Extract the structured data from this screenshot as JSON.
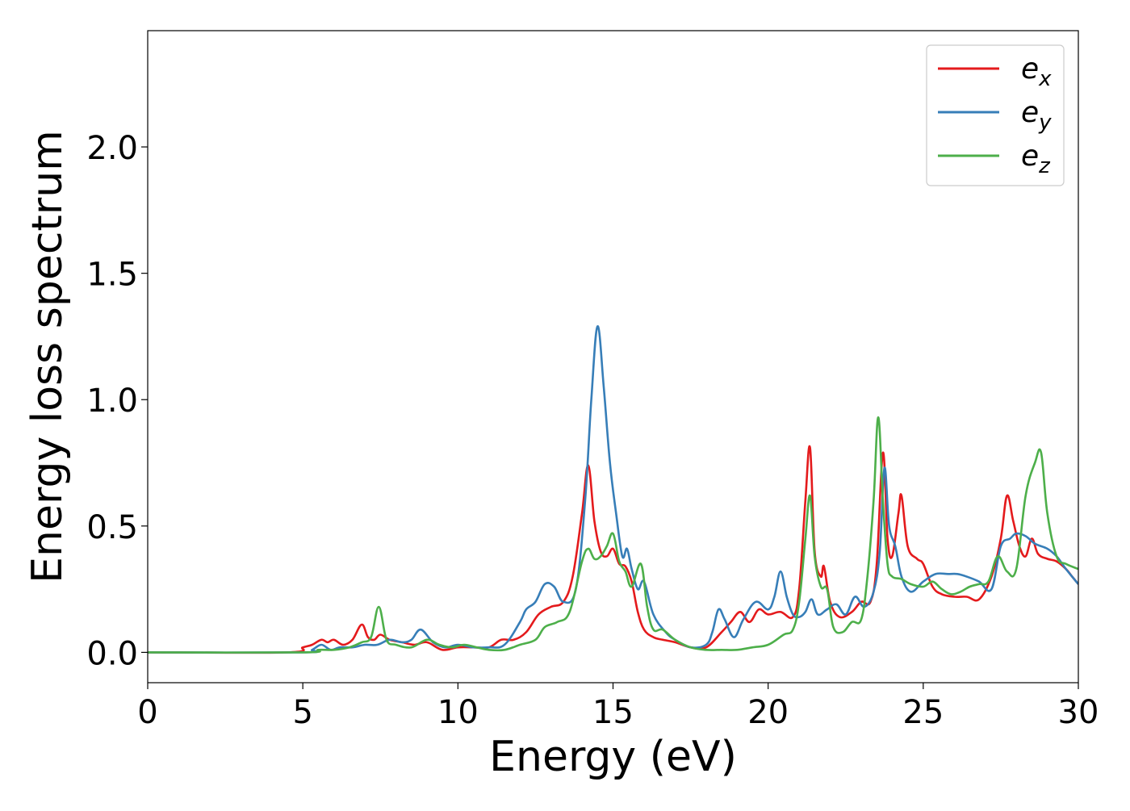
{
  "chart_data": {
    "type": "line",
    "title": "",
    "xlabel": "Energy (eV)",
    "ylabel": "Energy loss spectrum",
    "xlim": [
      0,
      30
    ],
    "ylim": [
      -0.12,
      2.46
    ],
    "xticks": [
      0,
      5,
      10,
      15,
      20,
      25,
      30
    ],
    "xtick_labels": [
      "0",
      "5",
      "10",
      "15",
      "20",
      "25",
      "30"
    ],
    "yticks": [
      0.0,
      0.5,
      1.0,
      1.5,
      2.0
    ],
    "ytick_labels": [
      "0.0",
      "0.5",
      "1.0",
      "1.5",
      "2.0"
    ],
    "grid": false,
    "legend_position": "top-right",
    "series": [
      {
        "name": "e_x",
        "legend_base": "e",
        "legend_sub": "x",
        "color": "#e41a1c",
        "x": [
          0,
          4.5,
          5.0,
          5.3,
          5.6,
          5.8,
          6.0,
          6.3,
          6.6,
          6.9,
          7.1,
          7.3,
          7.5,
          7.8,
          8.2,
          8.6,
          9.0,
          9.5,
          10.0,
          10.5,
          11.0,
          11.4,
          11.8,
          12.2,
          12.6,
          13.0,
          13.4,
          13.7,
          14.0,
          14.2,
          14.4,
          14.6,
          14.8,
          15.0,
          15.2,
          15.4,
          15.6,
          15.8,
          16.0,
          16.3,
          16.6,
          17.0,
          17.5,
          18.0,
          18.5,
          18.8,
          19.1,
          19.4,
          19.7,
          20.0,
          20.4,
          20.8,
          21.0,
          21.2,
          21.35,
          21.5,
          21.7,
          21.8,
          22.0,
          22.3,
          22.7,
          23.0,
          23.3,
          23.5,
          23.7,
          23.85,
          24.0,
          24.2,
          24.3,
          24.5,
          24.8,
          25.0,
          25.3,
          25.6,
          26.0,
          26.4,
          26.8,
          27.2,
          27.5,
          27.7,
          27.9,
          28.1,
          28.3,
          28.5,
          28.7,
          29.0,
          29.3,
          29.6,
          29.8,
          30.0
        ],
        "y": [
          0.0,
          0.0,
          0.02,
          0.03,
          0.05,
          0.04,
          0.05,
          0.03,
          0.05,
          0.11,
          0.06,
          0.05,
          0.07,
          0.05,
          0.04,
          0.03,
          0.04,
          0.01,
          0.02,
          0.02,
          0.02,
          0.05,
          0.05,
          0.08,
          0.15,
          0.18,
          0.2,
          0.3,
          0.55,
          0.74,
          0.52,
          0.4,
          0.38,
          0.41,
          0.35,
          0.34,
          0.28,
          0.16,
          0.09,
          0.06,
          0.05,
          0.04,
          0.02,
          0.02,
          0.08,
          0.12,
          0.16,
          0.12,
          0.17,
          0.15,
          0.16,
          0.14,
          0.25,
          0.6,
          0.81,
          0.4,
          0.3,
          0.34,
          0.2,
          0.14,
          0.16,
          0.2,
          0.2,
          0.35,
          0.79,
          0.45,
          0.38,
          0.55,
          0.62,
          0.42,
          0.37,
          0.35,
          0.26,
          0.23,
          0.22,
          0.22,
          0.21,
          0.3,
          0.45,
          0.62,
          0.52,
          0.42,
          0.38,
          0.45,
          0.39,
          0.37,
          0.36,
          0.33,
          0.3,
          0.27
        ]
      },
      {
        "name": "e_y",
        "legend_base": "e",
        "legend_sub": "y",
        "color": "#377eb8",
        "x": [
          0,
          5.0,
          5.3,
          5.6,
          5.9,
          6.2,
          6.6,
          7.0,
          7.4,
          7.8,
          8.2,
          8.5,
          8.8,
          9.2,
          9.6,
          10.0,
          10.5,
          11.0,
          11.5,
          12.0,
          12.2,
          12.5,
          12.8,
          13.1,
          13.4,
          13.8,
          14.1,
          14.3,
          14.5,
          14.7,
          14.9,
          15.1,
          15.3,
          15.45,
          15.6,
          15.8,
          16.0,
          16.3,
          16.7,
          17.0,
          17.5,
          18.0,
          18.2,
          18.4,
          18.6,
          18.9,
          19.2,
          19.6,
          20.0,
          20.2,
          20.4,
          20.6,
          20.8,
          21.0,
          21.2,
          21.4,
          21.6,
          21.9,
          22.2,
          22.5,
          22.8,
          23.1,
          23.4,
          23.6,
          23.75,
          23.9,
          24.1,
          24.3,
          24.6,
          25.0,
          25.4,
          25.8,
          26.1,
          26.4,
          26.8,
          27.2,
          27.5,
          27.8,
          28.0,
          28.3,
          28.6,
          29.0,
          29.3,
          29.6,
          30.0
        ],
        "y": [
          0.0,
          0.0,
          0.01,
          0.03,
          0.01,
          0.02,
          0.02,
          0.03,
          0.03,
          0.05,
          0.04,
          0.05,
          0.09,
          0.04,
          0.02,
          0.03,
          0.02,
          0.02,
          0.03,
          0.12,
          0.17,
          0.2,
          0.27,
          0.26,
          0.2,
          0.25,
          0.6,
          1.0,
          1.29,
          1.05,
          0.75,
          0.55,
          0.38,
          0.41,
          0.33,
          0.25,
          0.28,
          0.15,
          0.08,
          0.05,
          0.02,
          0.03,
          0.08,
          0.17,
          0.13,
          0.06,
          0.13,
          0.2,
          0.17,
          0.22,
          0.32,
          0.22,
          0.15,
          0.14,
          0.16,
          0.21,
          0.15,
          0.17,
          0.19,
          0.15,
          0.22,
          0.18,
          0.24,
          0.4,
          0.73,
          0.5,
          0.42,
          0.3,
          0.24,
          0.28,
          0.31,
          0.31,
          0.31,
          0.3,
          0.28,
          0.25,
          0.42,
          0.45,
          0.47,
          0.46,
          0.43,
          0.41,
          0.38,
          0.33,
          0.27
        ]
      },
      {
        "name": "e_z",
        "legend_base": "e",
        "legend_sub": "z",
        "color": "#4daf4a",
        "x": [
          0,
          5.0,
          5.5,
          6.0,
          6.5,
          6.9,
          7.2,
          7.45,
          7.7,
          8.0,
          8.5,
          9.0,
          9.4,
          9.8,
          10.2,
          10.6,
          11.0,
          11.5,
          12.0,
          12.5,
          12.8,
          13.2,
          13.6,
          14.0,
          14.2,
          14.4,
          14.6,
          14.8,
          15.0,
          15.2,
          15.4,
          15.6,
          15.9,
          16.1,
          16.3,
          16.6,
          17.0,
          17.5,
          18.0,
          18.5,
          19.0,
          19.5,
          20.0,
          20.5,
          20.8,
          21.0,
          21.2,
          21.35,
          21.5,
          21.7,
          21.9,
          22.1,
          22.4,
          22.7,
          23.0,
          23.2,
          23.4,
          23.55,
          23.7,
          23.85,
          24.0,
          24.3,
          24.6,
          25.0,
          25.3,
          25.6,
          25.9,
          26.2,
          26.5,
          26.8,
          27.1,
          27.4,
          27.7,
          28.0,
          28.3,
          28.6,
          28.8,
          29.0,
          29.3,
          29.6,
          30.0
        ],
        "y": [
          0.0,
          0.0,
          0.01,
          0.01,
          0.02,
          0.04,
          0.06,
          0.18,
          0.05,
          0.03,
          0.02,
          0.05,
          0.03,
          0.02,
          0.03,
          0.02,
          0.01,
          0.01,
          0.03,
          0.05,
          0.1,
          0.12,
          0.16,
          0.36,
          0.41,
          0.37,
          0.38,
          0.42,
          0.47,
          0.36,
          0.32,
          0.26,
          0.35,
          0.18,
          0.09,
          0.09,
          0.05,
          0.02,
          0.01,
          0.01,
          0.01,
          0.02,
          0.03,
          0.07,
          0.09,
          0.2,
          0.45,
          0.62,
          0.38,
          0.26,
          0.25,
          0.1,
          0.08,
          0.12,
          0.13,
          0.3,
          0.6,
          0.93,
          0.6,
          0.35,
          0.3,
          0.29,
          0.27,
          0.26,
          0.28,
          0.25,
          0.23,
          0.24,
          0.26,
          0.27,
          0.28,
          0.38,
          0.32,
          0.33,
          0.62,
          0.75,
          0.79,
          0.55,
          0.38,
          0.35,
          0.33
        ]
      }
    ]
  }
}
